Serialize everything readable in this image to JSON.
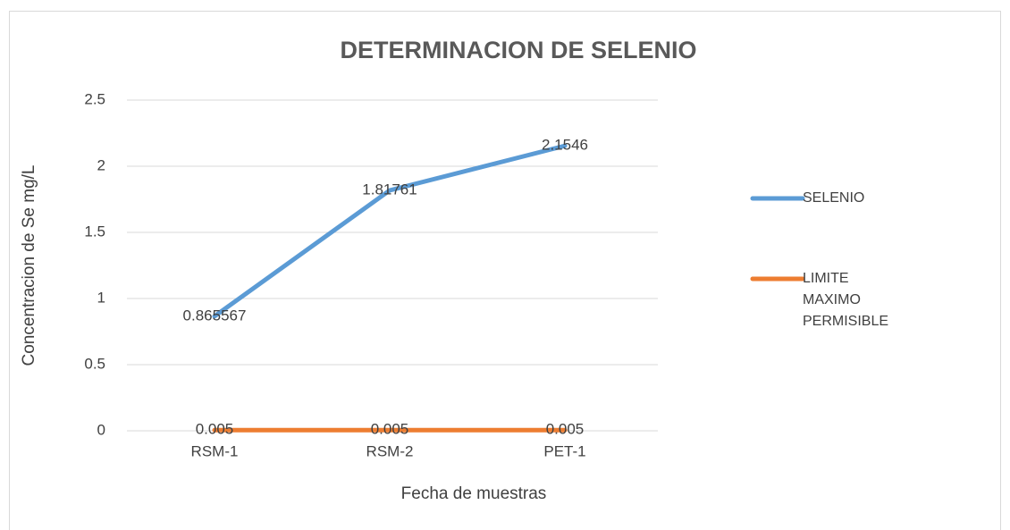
{
  "chart_data": {
    "type": "line",
    "title": "DETERMINACION DE SELENIO",
    "x_label": "Fecha de muestras",
    "y_label": "Concentracion de Se  mg/L",
    "categories": [
      "RSM-1",
      "RSM-2",
      "PET-1"
    ],
    "series": [
      {
        "name": "SELENIO",
        "color": "#5b9bd5",
        "values": [
          0.865567,
          1.81761,
          2.1546
        ]
      },
      {
        "name": "LIMITE MAXIMO PERMISIBLE",
        "color": "#ed7d31",
        "values": [
          0.005,
          0.005,
          0.005
        ]
      }
    ],
    "ylim": [
      0,
      2.5
    ],
    "yticks": [
      0,
      0.5,
      1,
      1.5,
      2,
      2.5
    ],
    "grid": true,
    "legend": "right"
  }
}
